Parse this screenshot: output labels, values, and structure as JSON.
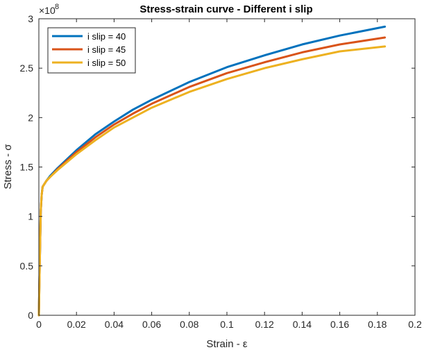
{
  "chart_data": {
    "type": "line",
    "title": "Stress-strain curve - Different i slip",
    "xlabel": "Strain - ε",
    "ylabel": "Stress - σ",
    "xlim": [
      0,
      0.2
    ],
    "ylim": [
      0,
      3
    ],
    "y_exponent_base": "×10",
    "y_exponent_power": "8",
    "x_ticks": [
      0,
      0.02,
      0.04,
      0.06,
      0.08,
      0.1,
      0.12,
      0.14,
      0.16,
      0.18,
      0.2
    ],
    "x_tick_labels": [
      "0",
      "0.02",
      "0.04",
      "0.06",
      "0.08",
      "0.1",
      "0.12",
      "0.14",
      "0.16",
      "0.18",
      "0.2"
    ],
    "y_ticks": [
      0,
      0.5,
      1,
      1.5,
      2,
      2.5,
      3
    ],
    "y_tick_labels": [
      "0",
      "0.5",
      "1",
      "1.5",
      "2",
      "2.5",
      "3"
    ],
    "grid": false,
    "legend_position": "top-left",
    "x": [
      0,
      0.0005,
      0.001,
      0.0015,
      0.002,
      0.003,
      0.004,
      0.006,
      0.01,
      0.02,
      0.03,
      0.04,
      0.05,
      0.06,
      0.08,
      0.1,
      0.12,
      0.14,
      0.16,
      0.184
    ],
    "series": [
      {
        "name": "i slip = 40",
        "color": "#0072BD",
        "values": [
          0,
          0.55,
          1.05,
          1.22,
          1.3,
          1.33,
          1.36,
          1.41,
          1.49,
          1.67,
          1.83,
          1.96,
          2.08,
          2.18,
          2.36,
          2.51,
          2.63,
          2.74,
          2.83,
          2.92
        ]
      },
      {
        "name": "i slip = 45",
        "color": "#D95319",
        "values": [
          0,
          0.55,
          1.05,
          1.22,
          1.3,
          1.33,
          1.36,
          1.4,
          1.48,
          1.65,
          1.8,
          1.93,
          2.04,
          2.14,
          2.31,
          2.45,
          2.56,
          2.66,
          2.74,
          2.81
        ]
      },
      {
        "name": "i slip = 50",
        "color": "#EDB120",
        "values": [
          0,
          0.55,
          1.05,
          1.22,
          1.3,
          1.33,
          1.36,
          1.4,
          1.47,
          1.63,
          1.77,
          1.9,
          2.0,
          2.1,
          2.26,
          2.39,
          2.5,
          2.59,
          2.67,
          2.72
        ]
      }
    ]
  }
}
